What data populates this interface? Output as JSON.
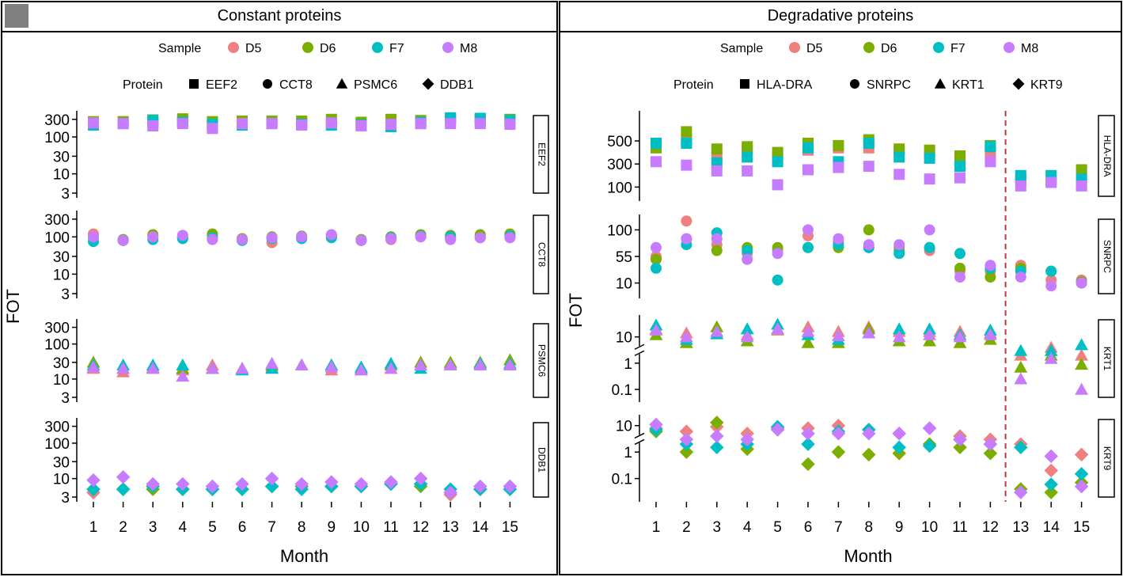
{
  "legend": {
    "sample_label": "Sample",
    "protein_label": "Protein",
    "samples": [
      {
        "name": "D5",
        "color": "#F08080"
      },
      {
        "name": "D6",
        "color": "#7CAE00"
      },
      {
        "name": "F7",
        "color": "#00BFC4"
      },
      {
        "name": "M8",
        "color": "#C77CFF"
      }
    ]
  },
  "chart_data": [
    {
      "type": "scatter",
      "title": "Constant proteins",
      "xlabel": "Month",
      "ylabel": "FOT",
      "x": [
        1,
        2,
        3,
        4,
        5,
        6,
        7,
        8,
        9,
        10,
        11,
        12,
        13,
        14,
        15
      ],
      "xtick_labels": [
        "1",
        "2",
        "3",
        "4",
        "5",
        "6",
        "7",
        "8",
        "9",
        "10",
        "11",
        "12",
        "13",
        "14",
        "15"
      ],
      "proteins": [
        "EEF2",
        "CCT8",
        "PSMC6",
        "DDB1"
      ],
      "facets": [
        {
          "protein": "EEF2",
          "shape": "square",
          "yscale": "log",
          "ylim": [
            3,
            380
          ],
          "yticks": [
            3,
            10,
            30,
            100,
            300
          ],
          "ytick_labels": [
            "3",
            "10",
            "30",
            "100",
            "300"
          ],
          "series": [
            {
              "name": "D5",
              "values": [
                250,
                240,
                240,
                270,
                200,
                230,
                250,
                240,
                250,
                220,
                240,
                230,
                280,
                260,
                250
              ]
            },
            {
              "name": "D6",
              "values": [
                260,
                260,
                290,
                310,
                260,
                270,
                270,
                270,
                300,
                250,
                300,
                280,
                310,
                300,
                300
              ]
            },
            {
              "name": "F7",
              "values": [
                210,
                230,
                280,
                250,
                220,
                210,
                230,
                220,
                210,
                210,
                190,
                250,
                330,
                320,
                280
              ]
            },
            {
              "name": "M8",
              "values": [
                240,
                230,
                200,
                230,
                170,
                230,
                230,
                210,
                240,
                200,
                220,
                230,
                230,
                230,
                220
              ]
            }
          ]
        },
        {
          "protein": "CCT8",
          "shape": "circle",
          "yscale": "log",
          "ylim": [
            3,
            380
          ],
          "yticks": [
            3,
            10,
            30,
            100,
            300
          ],
          "ytick_labels": [
            "3",
            "10",
            "30",
            "100",
            "300"
          ],
          "series": [
            {
              "name": "D5",
              "values": [
                120,
                80,
                110,
                95,
                105,
                85,
                70,
                95,
                100,
                80,
                85,
                110,
                95,
                105,
                110
              ]
            },
            {
              "name": "D6",
              "values": [
                95,
                85,
                115,
                100,
                120,
                90,
                100,
                105,
                110,
                85,
                100,
                115,
                110,
                115,
                120
              ]
            },
            {
              "name": "F7",
              "values": [
                75,
                80,
                85,
                90,
                95,
                80,
                90,
                90,
                95,
                80,
                95,
                105,
                100,
                95,
                105
              ]
            },
            {
              "name": "M8",
              "values": [
                100,
                80,
                100,
                110,
                85,
                85,
                95,
                100,
                115,
                80,
                90,
                100,
                85,
                95,
                95
              ]
            }
          ]
        },
        {
          "protein": "PSMC6",
          "shape": "triangle",
          "yscale": "log",
          "ylim": [
            3,
            380
          ],
          "yticks": [
            3,
            10,
            30,
            100,
            300
          ],
          "ytick_labels": [
            "3",
            "10",
            "30",
            "100",
            "300"
          ],
          "series": [
            {
              "name": "D5",
              "values": [
                20,
                16,
                22,
                18,
                25,
                20,
                22,
                25,
                18,
                18,
                20,
                25,
                28,
                25,
                25
              ]
            },
            {
              "name": "D6",
              "values": [
                30,
                20,
                20,
                20,
                20,
                20,
                25,
                25,
                25,
                20,
                25,
                30,
                30,
                30,
                35
              ]
            },
            {
              "name": "F7",
              "values": [
                25,
                25,
                25,
                25,
                20,
                18,
                20,
                25,
                25,
                22,
                28,
                20,
                25,
                28,
                28
              ]
            },
            {
              "name": "M8",
              "values": [
                22,
                20,
                20,
                12,
                20,
                20,
                28,
                25,
                22,
                18,
                20,
                25,
                25,
                25,
                25
              ]
            }
          ]
        },
        {
          "protein": "DDB1",
          "shape": "diamond",
          "yscale": "log",
          "ylim": [
            3,
            380
          ],
          "yticks": [
            3,
            10,
            30,
            100,
            300
          ],
          "ytick_labels": [
            "3",
            "10",
            "30",
            "100",
            "300"
          ],
          "series": [
            {
              "name": "D5",
              "values": [
                4,
                5,
                6,
                5,
                5,
                5,
                6,
                6,
                6,
                6,
                7,
                7,
                3.5,
                5,
                6
              ]
            },
            {
              "name": "D6",
              "values": [
                5,
                5,
                5,
                5,
                5,
                5,
                6,
                6,
                6,
                6,
                7,
                6,
                4,
                5,
                5
              ]
            },
            {
              "name": "F7",
              "values": [
                5,
                5,
                6,
                5,
                5,
                5,
                6,
                5,
                6,
                6,
                7,
                7,
                5,
                5,
                5
              ]
            },
            {
              "name": "M8",
              "values": [
                9,
                11,
                7,
                7,
                6,
                7,
                10,
                7,
                8,
                7,
                8,
                10,
                4,
                6,
                6
              ]
            }
          ]
        }
      ]
    },
    {
      "type": "scatter",
      "title": "Degradative proteins",
      "xlabel": "Month",
      "ylabel": "FOT",
      "x": [
        1,
        2,
        3,
        4,
        5,
        6,
        7,
        8,
        9,
        10,
        11,
        12,
        13,
        14,
        15
      ],
      "xtick_labels": [
        "1",
        "2",
        "3",
        "4",
        "5",
        "6",
        "7",
        "8",
        "9",
        "10",
        "11",
        "12",
        "13",
        "14",
        "15"
      ],
      "proteins": [
        "HLA-DRA",
        "SNRPC",
        "KRT1",
        "KRT9"
      ],
      "reference_line_after_month": 12,
      "facets": [
        {
          "protein": "HLA-DRA",
          "shape": "square",
          "yscale": "linear",
          "ylim": [
            20,
            720
          ],
          "yticks": [
            100,
            300,
            500
          ],
          "ytick_labels": [
            "100",
            "300",
            "500"
          ],
          "series": [
            {
              "name": "D5",
              "values": [
                460,
                510,
                370,
                420,
                370,
                420,
                440,
                440,
                410,
                390,
                310,
                390,
                160,
                150,
                120
              ]
            },
            {
              "name": "D6",
              "values": [
                440,
                580,
                430,
                450,
                400,
                480,
                460,
                510,
                430,
                420,
                370,
                460,
                170,
                150,
                250
              ]
            },
            {
              "name": "F7",
              "values": [
                480,
                480,
                310,
                360,
                320,
                440,
                320,
                480,
                360,
                350,
                280,
                450,
                200,
                200,
                170
              ]
            },
            {
              "name": "M8",
              "values": [
                320,
                290,
                240,
                240,
                120,
                250,
                270,
                280,
                210,
                170,
                180,
                320,
                110,
                140,
                110
              ]
            }
          ]
        },
        {
          "protein": "SNRPC",
          "shape": "circle",
          "yscale": "linear",
          "ylim": [
            -8,
            118
          ],
          "yticks": [
            10,
            55,
            100
          ],
          "ytick_labels": [
            "10",
            "55",
            "100"
          ],
          "series": [
            {
              "name": "D5",
              "values": [
                55,
                115,
                75,
                60,
                65,
                90,
                80,
                70,
                70,
                65,
                30,
                30,
                40,
                15,
                15
              ]
            },
            {
              "name": "D6",
              "values": [
                50,
                85,
                65,
                70,
                70,
                70,
                70,
                100,
                65,
                70,
                35,
                20,
                35,
                30,
                12
              ]
            },
            {
              "name": "F7",
              "values": [
                35,
                75,
                95,
                65,
                15,
                70,
                75,
                70,
                60,
                70,
                60,
                35,
                30,
                30,
                10
              ]
            },
            {
              "name": "M8",
              "values": [
                70,
                85,
                85,
                50,
                60,
                100,
                85,
                75,
                75,
                100,
                20,
                40,
                20,
                5,
                10
              ]
            }
          ]
        },
        {
          "protein": "KRT1",
          "shape": "triangle",
          "yscale": "log-broken",
          "ylim": [
            0.05,
            45
          ],
          "yticks": [
            0.1,
            1,
            10
          ],
          "ytick_labels": [
            "0.1",
            "1",
            "10"
          ],
          "series": [
            {
              "name": "D5",
              "values": [
                20,
                14,
                16,
                12,
                18,
                24,
                16,
                24,
                16,
                16,
                16,
                14,
                2,
                4,
                2
              ]
            },
            {
              "name": "D6",
              "values": [
                12,
                6,
                24,
                7,
                20,
                6,
                6,
                20,
                7,
                7,
                6,
                8,
                0.7,
                2,
                0.9
              ]
            },
            {
              "name": "F7",
              "values": [
                28,
                8,
                13,
                20,
                30,
                12,
                8,
                14,
                20,
                20,
                12,
                18,
                3,
                3,
                5
              ]
            },
            {
              "name": "M8",
              "values": [
                18,
                10,
                16,
                10,
                20,
                16,
                11,
                14,
                10,
                12,
                10,
                12,
                0.25,
                1.5,
                0.1
              ]
            }
          ]
        },
        {
          "protein": "KRT9",
          "shape": "diamond",
          "yscale": "log-broken",
          "ylim": [
            0.02,
            17
          ],
          "yticks": [
            0.1,
            1,
            10
          ],
          "ytick_labels": [
            "0.1",
            "1",
            "10"
          ],
          "series": [
            {
              "name": "D5",
              "values": [
                8,
                6,
                9,
                5,
                8,
                8,
                10,
                7,
                5,
                8,
                4,
                3,
                2,
                0.2,
                0.8
              ]
            },
            {
              "name": "D6",
              "values": [
                6,
                1,
                13,
                1.3,
                7,
                0.35,
                1,
                0.8,
                0.9,
                2,
                1.5,
                0.9,
                0.04,
                0.03,
                0.07
              ]
            },
            {
              "name": "F7",
              "values": [
                7,
                2,
                1.5,
                2,
                9,
                2,
                6,
                7,
                1.5,
                1.7,
                3,
                2,
                1.5,
                0.06,
                0.15
              ]
            },
            {
              "name": "M8",
              "values": [
                11,
                3,
                4,
                3,
                7,
                5,
                5,
                5,
                5,
                8,
                3,
                2,
                0.03,
                0.7,
                0.05
              ]
            }
          ]
        }
      ]
    }
  ]
}
